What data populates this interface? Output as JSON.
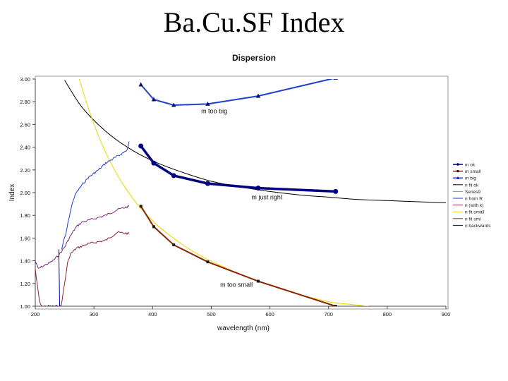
{
  "slide": {
    "title": "Ba.Cu.SF Index"
  },
  "chart_data": {
    "type": "line",
    "title": "Dispersion",
    "xlabel": "wavelength (nm)",
    "ylabel": "Index",
    "xlim": [
      200,
      900
    ],
    "ylim": [
      1.0,
      3.0
    ],
    "x_ticks": [
      200,
      300,
      400,
      500,
      600,
      700,
      800,
      900
    ],
    "y_ticks": [
      1.0,
      1.2,
      1.4,
      1.6,
      1.8,
      2.0,
      2.2,
      2.4,
      2.6,
      2.8,
      3.0
    ],
    "x_tick_labels": [
      "200",
      "300",
      "400",
      "500",
      "600",
      "700",
      "800",
      "900"
    ],
    "y_tick_labels": [
      "1.00",
      "1.20",
      "1.40",
      "1.60",
      "1.80",
      "2.00",
      "2.20",
      "2.40",
      "2.60",
      "2.80",
      "3.00"
    ],
    "grid": false,
    "legend_position": "right",
    "series": [
      {
        "name": "m ok",
        "color": "#000080",
        "marker": "circle",
        "lineWidth": 3.5,
        "x": [
          380,
          402,
          436,
          494,
          580,
          712
        ],
        "y": [
          2.41,
          2.26,
          2.15,
          2.08,
          2.04,
          2.01
        ]
      },
      {
        "name": "m small",
        "color": "#8B2500",
        "marker": "square",
        "lineWidth": 2,
        "x": [
          380,
          402,
          436,
          494,
          580,
          712
        ],
        "y": [
          1.88,
          1.7,
          1.54,
          1.39,
          1.22,
          1.0
        ]
      },
      {
        "name": "m big",
        "color": "#1f3fd0",
        "marker": "triangle",
        "lineWidth": 2,
        "x": [
          380,
          402,
          436,
          494,
          580,
          712
        ],
        "y": [
          2.95,
          2.82,
          2.77,
          2.78,
          2.85,
          3.01
        ]
      },
      {
        "name": "n fit ok",
        "color": "#000000",
        "marker": "none",
        "lineWidth": 1,
        "x": [
          250,
          280,
          320,
          360,
          400,
          450,
          500,
          550,
          600,
          650,
          700,
          750,
          800,
          850,
          900
        ],
        "y": [
          2.99,
          2.75,
          2.54,
          2.39,
          2.28,
          2.18,
          2.1,
          2.05,
          2.01,
          1.98,
          1.96,
          1.94,
          1.93,
          1.92,
          1.91
        ]
      },
      {
        "name": "Series9",
        "color": "#40a0e0",
        "marker": "none",
        "lineWidth": 1,
        "x": [],
        "y": []
      },
      {
        "name": "n from R",
        "color": "#1f3fd0",
        "marker": "none",
        "lineWidth": 1,
        "noisy": true,
        "x": [
          245,
          248,
          252,
          256,
          260,
          265,
          270,
          280,
          290,
          300,
          310,
          320,
          330,
          340,
          350,
          357,
          360
        ],
        "y": [
          1.5,
          1.57,
          1.63,
          1.74,
          1.84,
          1.94,
          2.0,
          2.07,
          2.13,
          2.17,
          2.21,
          2.26,
          2.29,
          2.32,
          2.35,
          2.38,
          2.45
        ]
      },
      {
        "name": "n (with k)",
        "color": "#7f2a7f",
        "marker": "none",
        "lineWidth": 1,
        "noisy": true,
        "x": [
          200,
          205,
          212,
          220,
          230,
          240,
          250,
          260,
          270,
          280,
          300,
          320,
          340,
          360
        ],
        "y": [
          1.4,
          1.33,
          1.35,
          1.37,
          1.4,
          1.45,
          1.52,
          1.62,
          1.7,
          1.74,
          1.77,
          1.8,
          1.85,
          1.88
        ]
      },
      {
        "name": "n fit small",
        "color": "#e8d800",
        "marker": "none",
        "lineWidth": 1,
        "x": [
          275,
          290,
          310,
          330,
          350,
          380,
          420,
          480,
          560,
          640,
          700,
          730,
          768
        ],
        "y": [
          3.0,
          2.75,
          2.47,
          2.25,
          2.07,
          1.86,
          1.66,
          1.45,
          1.26,
          1.12,
          1.04,
          1.02,
          1.0
        ]
      },
      {
        "name": "n fit sml",
        "color": "#8b2332",
        "marker": "none",
        "lineWidth": 1,
        "noisy": true,
        "x": [
          200,
          203,
          207,
          210,
          244,
          250,
          255,
          260,
          270,
          280,
          290,
          300,
          320,
          340,
          360
        ],
        "y": [
          1.33,
          1.2,
          1.05,
          1.0,
          1.0,
          1.2,
          1.38,
          1.46,
          1.51,
          1.53,
          1.55,
          1.56,
          1.58,
          1.65,
          1.64
        ]
      },
      {
        "name": "n backwards",
        "color": "#0000c0",
        "marker": "none",
        "lineWidth": 1,
        "x": [
          240,
          241,
          241.5
        ],
        "y": [
          1.5,
          1.2,
          1.0
        ]
      }
    ],
    "annotations": [
      {
        "text": "m too big",
        "x": 505,
        "y": 2.7
      },
      {
        "text": "m just right",
        "x": 595,
        "y": 1.94
      },
      {
        "text": "m too small",
        "x": 543,
        "y": 1.17
      }
    ]
  }
}
